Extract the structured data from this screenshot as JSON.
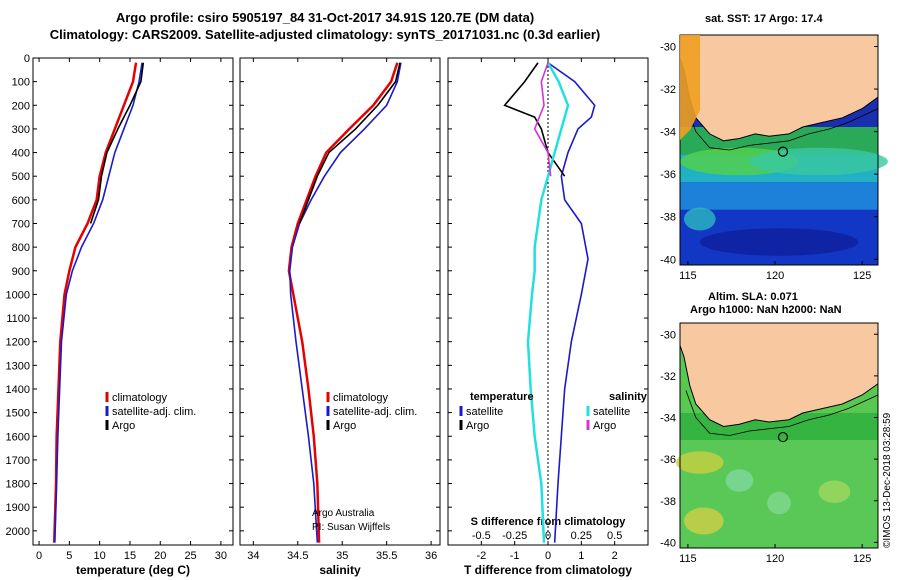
{
  "title_line1": "Argo profile: csiro 5905197_84 31-Oct-2017 34.91S 120.7E (DM data)",
  "title_line2": "Climatology: CARS2009. Satellite-adjusted climatology: synTS_20171031.nc (0.3d earlier)",
  "colors": {
    "climatology": "#e60000",
    "satellite": "#1a1acc",
    "argo": "#000000",
    "sat_salinity": "#22e0e0",
    "argo_salinity_diff": "#d633d6",
    "land": "#f8c8a0"
  },
  "panel_temp": {
    "xlabel": "temperature (deg C)",
    "xticks": [
      "0",
      "5",
      "10",
      "15",
      "20",
      "25",
      "30"
    ],
    "legend": [
      "climatology",
      "satellite-adj. clim.",
      "Argo"
    ]
  },
  "panel_sal": {
    "xlabel": "salinity",
    "xticks": [
      "34",
      "34.5",
      "35",
      "35.5",
      "36"
    ],
    "legend": [
      "climatology",
      "satellite-adj. clim.",
      "Argo"
    ],
    "credit1": "Argo Australia",
    "credit2": "PI: Susan Wijffels"
  },
  "panel_diff": {
    "xlabel": "T difference from climatology",
    "xticks": [
      "-2",
      "-1",
      "0",
      "1",
      "2"
    ],
    "top_xlabel": "S difference from climatology",
    "top_xticks": [
      "-0.5",
      "-0.25",
      "0",
      "0.25",
      "0.5"
    ],
    "legend_temp_header": "temperature",
    "legend_sal_header": "salinity",
    "legend_temp": [
      "satellite",
      "Argo"
    ],
    "legend_sal": [
      "satellite",
      "Argo"
    ]
  },
  "yticks": [
    "0",
    "100",
    "200",
    "300",
    "400",
    "500",
    "600",
    "700",
    "800",
    "900",
    "1000",
    "1100",
    "1200",
    "1300",
    "1400",
    "1500",
    "1600",
    "1700",
    "1800",
    "1900",
    "2000"
  ],
  "map1": {
    "label": "sat. SST: 17 Argo: 17.4",
    "yticks": [
      "-30",
      "-32",
      "-34",
      "-36",
      "-38",
      "-40"
    ],
    "xticks": [
      "115",
      "120",
      "125"
    ]
  },
  "map2": {
    "label1": "Altim. SLA: 0.071",
    "label2": "Argo h1000: NaN h2000: NaN",
    "yticks": [
      "-30",
      "-32",
      "-34",
      "-36",
      "-38",
      "-40"
    ],
    "xticks": [
      "115",
      "120",
      "125"
    ]
  },
  "imos": "©IMOS 13-Dec-2018 03:28:59",
  "chart_data": [
    {
      "type": "line",
      "title": "",
      "xlabel": "temperature (deg C)",
      "ylabel": "",
      "xlim": [
        -1,
        32
      ],
      "ylim": [
        2060,
        0
      ],
      "series": [
        {
          "name": "climatology",
          "x": [
            16.0,
            15.5,
            14.0,
            12.5,
            11.0,
            10.0,
            9.5,
            8.0,
            6.0,
            5.0,
            4.2,
            3.5,
            3.2,
            2.9,
            2.8,
            2.5
          ],
          "y": [
            20,
            100,
            200,
            300,
            400,
            500,
            600,
            700,
            800,
            900,
            1000,
            1200,
            1400,
            1600,
            1800,
            2050
          ]
        },
        {
          "name": "satellite-adj. clim.",
          "x": [
            17.0,
            16.5,
            15.5,
            14.0,
            12.5,
            11.5,
            10.5,
            9.0,
            7.0,
            5.5,
            4.5,
            3.7,
            3.4,
            3.1,
            2.9,
            2.6
          ],
          "y": [
            20,
            100,
            200,
            300,
            400,
            500,
            600,
            700,
            800,
            900,
            1000,
            1200,
            1400,
            1600,
            1800,
            2050
          ]
        },
        {
          "name": "Argo",
          "x": [
            17.2,
            16.8,
            15.0,
            13.0,
            11.2,
            10.3,
            9.8,
            8.5
          ],
          "y": [
            20,
            100,
            200,
            300,
            400,
            500,
            600,
            700
          ]
        }
      ]
    },
    {
      "type": "line",
      "title": "",
      "xlabel": "salinity",
      "ylabel": "",
      "xlim": [
        33.85,
        36.1
      ],
      "ylim": [
        2060,
        0
      ],
      "series": [
        {
          "name": "climatology",
          "x": [
            35.62,
            35.55,
            35.35,
            35.08,
            34.82,
            34.7,
            34.6,
            34.5,
            34.43,
            34.4,
            34.45,
            34.55,
            34.62,
            34.68,
            34.72,
            34.74
          ],
          "y": [
            20,
            100,
            200,
            300,
            400,
            500,
            600,
            700,
            800,
            900,
            1000,
            1200,
            1400,
            1600,
            1800,
            2050
          ]
        },
        {
          "name": "satellite-adj. clim.",
          "x": [
            35.66,
            35.62,
            35.5,
            35.25,
            34.98,
            34.8,
            34.65,
            34.52,
            34.44,
            34.41,
            34.42,
            34.48,
            34.55,
            34.62,
            34.68,
            34.72
          ],
          "y": [
            20,
            100,
            200,
            300,
            400,
            500,
            600,
            700,
            800,
            900,
            1000,
            1200,
            1400,
            1600,
            1800,
            2050
          ]
        },
        {
          "name": "Argo",
          "x": [
            35.65,
            35.6,
            35.4,
            35.15,
            34.85,
            34.72,
            34.62,
            34.52
          ],
          "y": [
            20,
            100,
            200,
            300,
            400,
            500,
            600,
            700
          ]
        }
      ]
    },
    {
      "type": "line",
      "title": "",
      "xlabel": "T difference from climatology",
      "x2label": "S difference from climatology",
      "ylabel": "",
      "xlim": [
        -3,
        3
      ],
      "x2lim": [
        -0.75,
        0.75
      ],
      "ylim": [
        2060,
        0
      ],
      "series": [
        {
          "name": "satellite",
          "variable": "temperature",
          "x": [
            0.0,
            0.8,
            1.4,
            1.3,
            0.9,
            0.6,
            0.4,
            0.5,
            1.0,
            1.2,
            1.0,
            0.7,
            0.5,
            0.4,
            0.3,
            0.2
          ],
          "y": [
            20,
            100,
            200,
            250,
            300,
            400,
            500,
            600,
            700,
            850,
            1000,
            1200,
            1400,
            1600,
            1800,
            2050
          ]
        },
        {
          "name": "Argo",
          "variable": "temperature",
          "x": [
            -0.3,
            -0.7,
            -1.3,
            -0.4,
            -0.2,
            0.0,
            0.5
          ],
          "y": [
            20,
            100,
            200,
            250,
            300,
            400,
            500
          ]
        },
        {
          "name": "satellite",
          "variable": "salinity",
          "x": [
            0.0,
            0.08,
            0.15,
            0.1,
            0.05,
            0.0,
            -0.05,
            -0.1,
            -0.1,
            -0.12,
            -0.15,
            -0.13,
            -0.1,
            -0.05,
            -0.03
          ],
          "y": [
            20,
            100,
            200,
            300,
            400,
            500,
            600,
            800,
            900,
            1000,
            1200,
            1400,
            1600,
            1800,
            2050
          ]
        },
        {
          "name": "Argo",
          "variable": "salinity",
          "x": [
            0.0,
            -0.05,
            -0.03,
            -0.1,
            0.0,
            0.02
          ],
          "y": [
            20,
            100,
            200,
            300,
            400,
            500
          ]
        }
      ]
    }
  ]
}
